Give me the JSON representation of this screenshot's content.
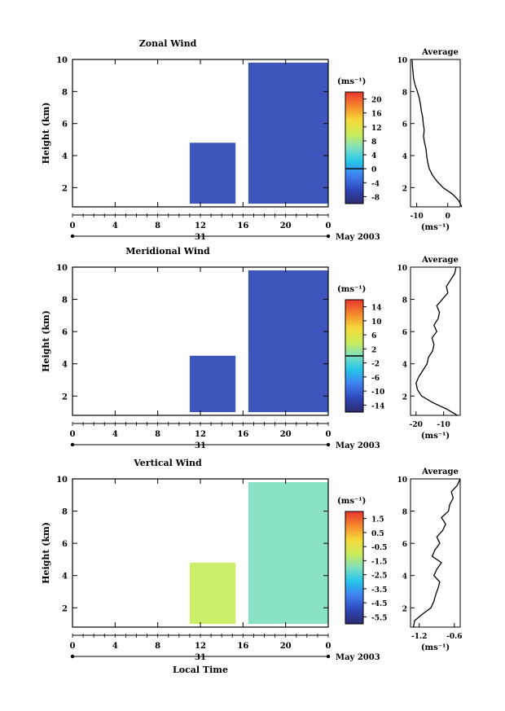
{
  "chart_data": [
    {
      "type": "heatmap",
      "title": "Zonal Wind",
      "ylabel": "Height (km)",
      "xlabel": "",
      "ylim": [
        0.8,
        10
      ],
      "yticks": [
        "2",
        "4",
        "6",
        "8",
        "10"
      ],
      "xlim": [
        0,
        24
      ],
      "xticks": [
        "0",
        "4",
        "8",
        "12",
        "16",
        "20",
        "0"
      ],
      "date_day": "31",
      "date_label": "May 2003",
      "colorbar": {
        "unit": "(ms⁻¹)",
        "ticks": [
          "20",
          "16",
          "12",
          "8",
          "4",
          "0",
          "-4",
          "-8"
        ],
        "range": [
          -10,
          22
        ],
        "zero_line": 0
      },
      "data_blocks": [
        {
          "t_start": 11,
          "t_end": 15.3,
          "h_bottom": 1.0,
          "h_top": 4.8,
          "level": -7
        },
        {
          "t_start": 16.5,
          "t_end": 24,
          "h_bottom": 1.0,
          "h_top": 9.8,
          "level": -7
        }
      ],
      "average": {
        "title": "Average",
        "xlabel": "(ms⁻¹)",
        "xticks": [
          "-10",
          "0"
        ],
        "xlim": [
          -12,
          4
        ],
        "heights": [
          0.8,
          1.2,
          1.6,
          2.0,
          2.4,
          2.8,
          3.2,
          3.6,
          4.0,
          4.4,
          4.8,
          5.2,
          5.6,
          6.0,
          6.4,
          6.8,
          7.2,
          7.6,
          8.0,
          8.4,
          8.8,
          9.2,
          9.6,
          10.0
        ],
        "values": [
          4.5,
          3.5,
          1.5,
          -1.5,
          -3.5,
          -5,
          -6,
          -6.5,
          -6.8,
          -7,
          -7.5,
          -7.8,
          -7.6,
          -7.9,
          -8.1,
          -8.5,
          -8.8,
          -9.2,
          -9.8,
          -10.5,
          -11,
          -11.2,
          -11.4,
          -11.5
        ]
      }
    },
    {
      "type": "heatmap",
      "title": "Meridional Wind",
      "ylabel": "Height (km)",
      "xlabel": "",
      "ylim": [
        0.8,
        10
      ],
      "yticks": [
        "2",
        "4",
        "6",
        "8",
        "10"
      ],
      "xlim": [
        0,
        24
      ],
      "xticks": [
        "0",
        "4",
        "8",
        "12",
        "16",
        "20",
        "0"
      ],
      "date_day": "31",
      "date_label": "May 2003",
      "colorbar": {
        "unit": "(ms⁻¹)",
        "ticks": [
          "14",
          "10",
          "6",
          "2",
          "-2",
          "-6",
          "-10",
          "-14"
        ],
        "range": [
          -16,
          16
        ],
        "zero_line": 0
      },
      "data_blocks": [
        {
          "t_start": 11,
          "t_end": 15.3,
          "h_bottom": 1.0,
          "h_top": 4.5,
          "level": -14
        },
        {
          "t_start": 16.5,
          "t_end": 24,
          "h_bottom": 1.0,
          "h_top": 9.8,
          "level": -14
        }
      ],
      "average": {
        "title": "Average",
        "xlabel": "(ms⁻¹)",
        "xticks": [
          "-20",
          "-10"
        ],
        "xlim": [
          -22,
          -4
        ],
        "heights": [
          0.8,
          1.2,
          1.6,
          2.0,
          2.4,
          2.8,
          3.2,
          3.6,
          4.0,
          4.4,
          4.8,
          5.2,
          5.6,
          6.0,
          6.4,
          6.8,
          7.2,
          7.6,
          8.0,
          8.4,
          8.8,
          9.2,
          9.6,
          10.0
        ],
        "values": [
          -5,
          -9,
          -14,
          -18,
          -19.5,
          -20,
          -19,
          -17.5,
          -16,
          -15.5,
          -14,
          -13.5,
          -14.2,
          -12.5,
          -13.5,
          -12,
          -11.5,
          -12.5,
          -10.5,
          -8.5,
          -9,
          -7.5,
          -6,
          -5.5
        ]
      }
    },
    {
      "type": "heatmap",
      "title": "Vertical Wind",
      "ylabel": "Height (km)",
      "xlabel": "Local Time",
      "ylim": [
        0.8,
        10
      ],
      "yticks": [
        "2",
        "4",
        "6",
        "8",
        "10"
      ],
      "xlim": [
        0,
        24
      ],
      "xticks": [
        "0",
        "4",
        "8",
        "12",
        "16",
        "20",
        "0"
      ],
      "date_day": "31",
      "date_label": "May 2003",
      "colorbar": {
        "unit": "(ms⁻¹)",
        "ticks": [
          "1.5",
          "0.5",
          "-0.5",
          "-1.5",
          "-2.5",
          "-3.5",
          "-4.5",
          "-5.5"
        ],
        "range": [
          -6,
          2
        ],
        "zero_line": null
      },
      "data_blocks": [
        {
          "t_start": 11,
          "t_end": 15.3,
          "h_bottom": 1.0,
          "h_top": 4.8,
          "level": -1.0
        },
        {
          "t_start": 16.5,
          "t_end": 24,
          "h_bottom": 1.0,
          "h_top": 9.8,
          "level": -2.5
        }
      ],
      "average": {
        "title": "Average",
        "xlabel": "(ms⁻¹)",
        "xticks": [
          "-1.2",
          "-0.6"
        ],
        "xlim": [
          -1.35,
          -0.5
        ],
        "heights": [
          0.8,
          1.2,
          1.6,
          2.0,
          2.4,
          2.8,
          3.2,
          3.6,
          4.0,
          4.4,
          4.8,
          5.2,
          5.6,
          6.0,
          6.4,
          6.8,
          7.2,
          7.6,
          8.0,
          8.4,
          8.8,
          9.2,
          9.6,
          10.0
        ],
        "values": [
          -1.3,
          -1.28,
          -1.15,
          -1.0,
          -0.95,
          -0.92,
          -0.88,
          -0.85,
          -0.95,
          -0.9,
          -0.82,
          -0.98,
          -0.93,
          -0.85,
          -0.9,
          -0.8,
          -0.75,
          -0.82,
          -0.7,
          -0.68,
          -0.62,
          -0.65,
          -0.55,
          -0.5
        ]
      }
    }
  ]
}
